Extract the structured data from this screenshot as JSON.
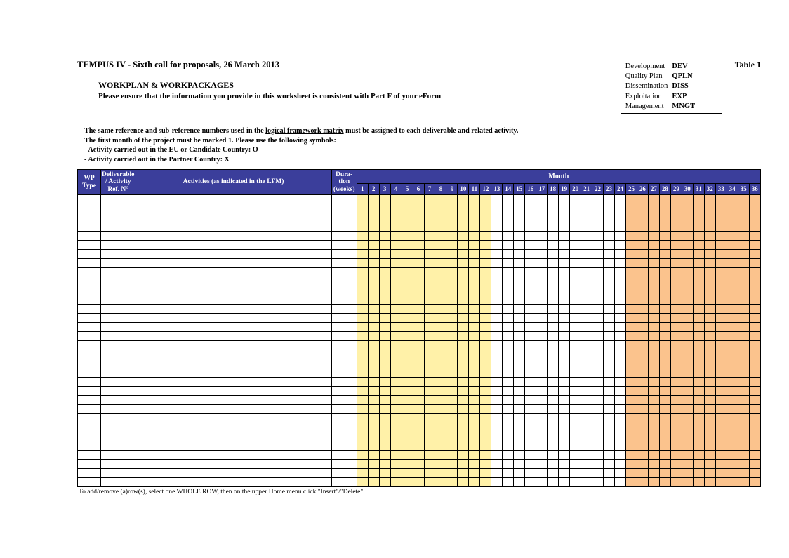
{
  "doc_title": "TEMPUS IV - Sixth call for proposals, 26 March 2013",
  "section_title": "WORKPLAN & WORKPACKAGES",
  "instruction": "Please ensure that the information you provide in this worksheet is consistent with Part F of your eForm",
  "table_label": "Table 1",
  "legend": [
    {
      "name": "Development",
      "code": "DEV"
    },
    {
      "name": "Quality Plan",
      "code": "QPLN"
    },
    {
      "name": "Dissemination",
      "code": "DISS"
    },
    {
      "name": "Exploitation",
      "code": "EXP"
    },
    {
      "name": "Management",
      "code": "MNGT"
    }
  ],
  "notes": {
    "line1_a": "The same reference and sub-reference numbers used in the ",
    "line1_link": "logical framework matrix",
    "line1_b": " must be assigned to each deliverable and related activity.",
    "line2": "The first month of the project must be marked 1.  Please use the following symbols:",
    "line3": "- Activity carried out in the EU or Candidate Country:    O",
    "line4": "- Activity carried out in the Partner Country:                   X"
  },
  "headers": {
    "wp": "WP Type",
    "ref": "Deliverable / Activity Ref. N°",
    "act": "Activities (as indicated in the LFM)",
    "dur": "Dura-tion (weeks)",
    "month_super": "Month"
  },
  "gantt": {
    "months": 36,
    "body_rows": 32,
    "header_bg": "#3b3e9b",
    "header_fg": "#ffffff",
    "color_bands": [
      {
        "from": 1,
        "to": 12,
        "bg": "#fff1a8"
      },
      {
        "from": 13,
        "to": 24,
        "bg": "#ffffff"
      },
      {
        "from": 25,
        "to": 36,
        "bg": "#fbc38d"
      }
    ]
  },
  "footnote": "To add/remove (a)row(s), select one WHOLE ROW, then on the upper Home menu click \"Insert\"/\"Delete\"."
}
